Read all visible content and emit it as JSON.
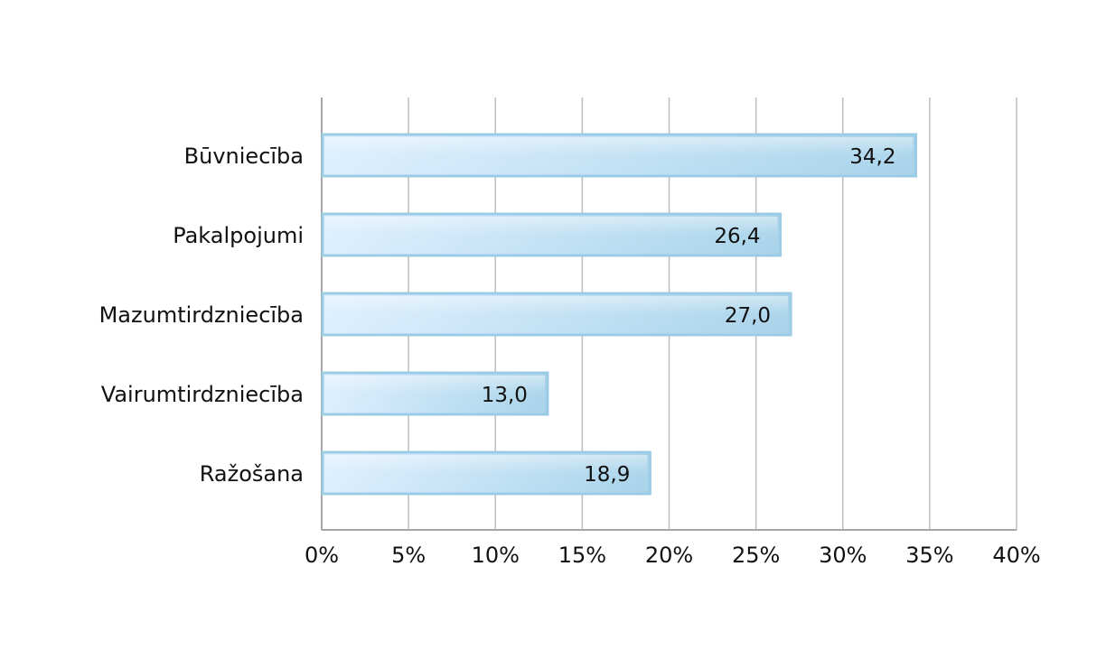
{
  "chart_data": {
    "type": "bar",
    "orientation": "horizontal",
    "categories": [
      "Būvniecība",
      "Pakalpojumi",
      "Mazumtirdzniecība",
      "Vairumtirdzniecība",
      "Ražošana"
    ],
    "values": [
      34.2,
      26.4,
      27.0,
      13.0,
      18.9
    ],
    "value_labels": [
      "34,2",
      "26,4",
      "27,0",
      "13,0",
      "18,9"
    ],
    "xlim": [
      0,
      40
    ],
    "x_ticks": [
      0,
      5,
      10,
      15,
      20,
      25,
      30,
      35,
      40
    ],
    "x_tick_labels": [
      "0%",
      "5%",
      "10%",
      "15%",
      "20%",
      "25%",
      "30%",
      "35%",
      "40%"
    ],
    "grid": "vertical",
    "colors": {
      "bar_fill_light": "#d6ebf7",
      "bar_fill_dark": "#a9d2e9",
      "bar_border": "#9ccbe6",
      "grid": "#bdbdbd",
      "axis": "#a6a6a6"
    }
  }
}
